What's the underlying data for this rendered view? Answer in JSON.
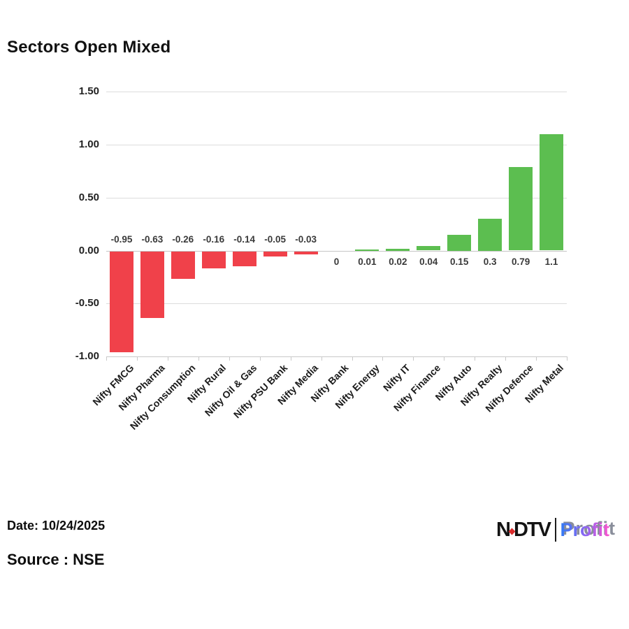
{
  "chart_data": {
    "type": "bar",
    "title": "Sectors Open Mixed",
    "xlabel": "",
    "ylabel": "",
    "categories": [
      "Nifty FMCG",
      "Nifty Pharma",
      "Nifty Consumption",
      "Nifty Rural",
      "Nifty Oil & Gas",
      "Nifty PSU Bank",
      "Nifty Media",
      "Nifty Bank",
      "Nifty Energy",
      "Nifty IT",
      "Nifty Finance",
      "Nifty Auto",
      "Nifty Realty",
      "Nifty Defence",
      "Nifty Metal"
    ],
    "values": [
      -0.95,
      -0.63,
      -0.26,
      -0.16,
      -0.14,
      -0.05,
      -0.03,
      0,
      0.01,
      0.02,
      0.04,
      0.15,
      0.3,
      0.79,
      1.1
    ],
    "value_labels": [
      "-0.95",
      "-0.63",
      "-0.26",
      "-0.16",
      "-0.14",
      "-0.05",
      "-0.03",
      "0",
      "0.01",
      "0.02",
      "0.04",
      "0.15",
      "0.3",
      "0.79",
      "1.1"
    ],
    "ylim": [
      -1.0,
      1.5
    ],
    "y_ticks": [
      1.5,
      1.0,
      0.5,
      0.0,
      -0.5,
      -1.0
    ],
    "y_tick_labels": [
      "1.50",
      "1.00",
      "0.50",
      "0.00",
      "-0.50",
      "-1.00"
    ],
    "grid": true,
    "legend": false,
    "colors": {
      "positive": "#5cbe50",
      "negative": "#f0414a"
    }
  },
  "footer": {
    "date": "Date: 10/24/2025",
    "source": "Source : NSE",
    "logo": {
      "ndtv_n": "N",
      "ndtv_rest": "DTV",
      "profit": "Profit",
      "dot_color": "#d92b2b",
      "profit_gradient": [
        "#2f7bf5",
        "#9465f2",
        "#fd54cd"
      ]
    }
  }
}
